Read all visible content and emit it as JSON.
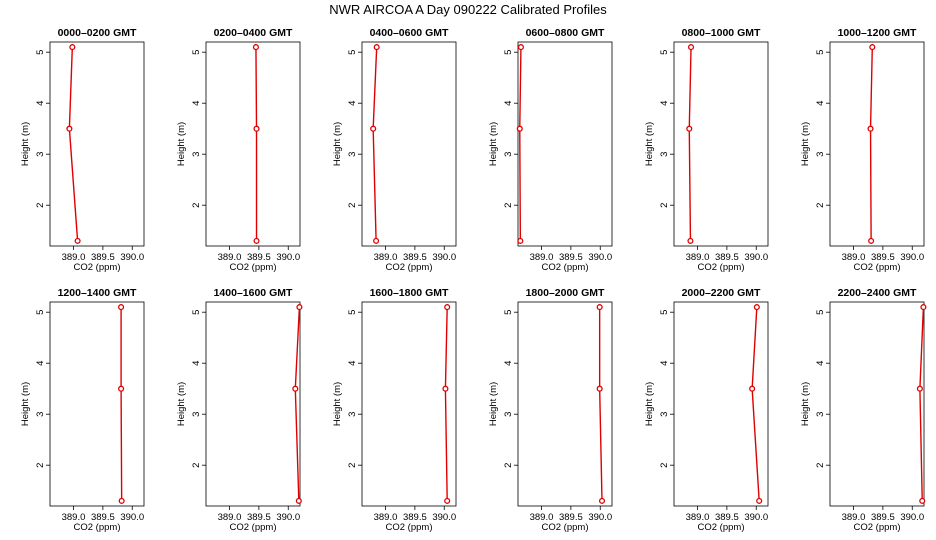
{
  "title": "NWR AIRCOA A  Day 090222  Calibrated Profiles",
  "colors": {
    "series": "#e00000",
    "axis": "#000000",
    "background": "#ffffff"
  },
  "chart_data": {
    "type": "line",
    "layout": "2x6 small multiples",
    "xlabel": "CO2 (ppm)",
    "ylabel": "Height (m)",
    "xlim": [
      388.6,
      390.2
    ],
    "ylim": [
      1.2,
      5.2
    ],
    "xticks": [
      389.0,
      389.5,
      390.0
    ],
    "xtick_labels": [
      "389.0",
      "389.5",
      "390.0"
    ],
    "yticks": [
      2,
      3,
      4,
      5
    ],
    "ytick_labels": [
      "2",
      "3",
      "4",
      "5"
    ],
    "grid": false,
    "legend": false,
    "panels": [
      {
        "title": "0000–0200 GMT",
        "points": [
          {
            "x": 389.07,
            "y": 1.3
          },
          {
            "x": 388.93,
            "y": 3.5
          },
          {
            "x": 388.98,
            "y": 5.1
          }
        ]
      },
      {
        "title": "0200–0400 GMT",
        "points": [
          {
            "x": 389.46,
            "y": 1.3
          },
          {
            "x": 389.46,
            "y": 3.5
          },
          {
            "x": 389.45,
            "y": 5.1
          }
        ]
      },
      {
        "title": "0400–0600 GMT",
        "points": [
          {
            "x": 388.84,
            "y": 1.3
          },
          {
            "x": 388.79,
            "y": 3.5
          },
          {
            "x": 388.85,
            "y": 5.1
          }
        ]
      },
      {
        "title": "0600–0800 GMT",
        "points": [
          {
            "x": 388.64,
            "y": 1.3
          },
          {
            "x": 388.63,
            "y": 3.5
          },
          {
            "x": 388.65,
            "y": 5.1
          }
        ]
      },
      {
        "title": "0800–1000 GMT",
        "points": [
          {
            "x": 388.88,
            "y": 1.3
          },
          {
            "x": 388.86,
            "y": 3.5
          },
          {
            "x": 388.89,
            "y": 5.1
          }
        ]
      },
      {
        "title": "1000–1200 GMT",
        "points": [
          {
            "x": 389.3,
            "y": 1.3
          },
          {
            "x": 389.29,
            "y": 3.5
          },
          {
            "x": 389.32,
            "y": 5.1
          }
        ]
      },
      {
        "title": "1200–1400 GMT",
        "points": [
          {
            "x": 389.82,
            "y": 1.3
          },
          {
            "x": 389.81,
            "y": 3.5
          },
          {
            "x": 389.81,
            "y": 5.1
          }
        ]
      },
      {
        "title": "1400–1600 GMT",
        "points": [
          {
            "x": 390.18,
            "y": 1.3
          },
          {
            "x": 390.12,
            "y": 3.5
          },
          {
            "x": 390.19,
            "y": 5.1
          }
        ]
      },
      {
        "title": "1600–1800 GMT",
        "points": [
          {
            "x": 390.05,
            "y": 1.3
          },
          {
            "x": 390.02,
            "y": 3.5
          },
          {
            "x": 390.05,
            "y": 5.1
          }
        ]
      },
      {
        "title": "1800–2000 GMT",
        "points": [
          {
            "x": 390.03,
            "y": 1.3
          },
          {
            "x": 389.99,
            "y": 3.5
          },
          {
            "x": 389.99,
            "y": 5.1
          }
        ]
      },
      {
        "title": "2000–2200 GMT",
        "points": [
          {
            "x": 390.05,
            "y": 1.3
          },
          {
            "x": 389.93,
            "y": 3.5
          },
          {
            "x": 390.01,
            "y": 5.1
          }
        ]
      },
      {
        "title": "2200–2400 GMT",
        "points": [
          {
            "x": 390.17,
            "y": 1.3
          },
          {
            "x": 390.13,
            "y": 3.5
          },
          {
            "x": 390.19,
            "y": 5.1
          }
        ]
      }
    ]
  }
}
